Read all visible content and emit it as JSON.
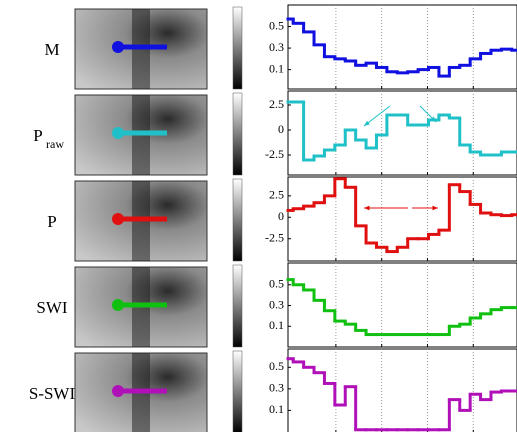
{
  "chart_data": [
    {
      "type": "line",
      "label": "M",
      "color": "#1010e0",
      "x": [
        0,
        1,
        2,
        3,
        4,
        5,
        6,
        7,
        8,
        9,
        10,
        11,
        12,
        13,
        14,
        15,
        16,
        17,
        18,
        19,
        20,
        21,
        22
      ],
      "xlim": [
        0,
        22
      ],
      "xticks": [
        4.6,
        9,
        13.4,
        17.8
      ],
      "values": [
        0.57,
        0.53,
        0.45,
        0.33,
        0.22,
        0.2,
        0.18,
        0.14,
        0.16,
        0.12,
        0.08,
        0.07,
        0.08,
        0.1,
        0.12,
        0.04,
        0.12,
        0.14,
        0.2,
        0.25,
        0.28,
        0.29,
        0.28
      ],
      "ylim": [
        -0.08,
        0.7
      ],
      "yticks": [
        0.1,
        0.3,
        0.5
      ],
      "grid": "x"
    },
    {
      "type": "line",
      "label": "P",
      "label_sub": "raw",
      "color": "#20c0c8",
      "x": [
        0,
        1,
        2,
        3,
        4,
        5,
        6,
        7,
        8,
        9,
        10,
        11,
        12,
        13,
        14,
        15,
        16,
        17,
        18,
        19,
        20,
        21,
        22
      ],
      "xlim": [
        0,
        22
      ],
      "xticks": [
        4.6,
        9,
        13.4,
        17.8
      ],
      "values": [
        2.8,
        2.8,
        -3,
        -2.6,
        -2,
        -1.5,
        0,
        -1,
        -1.8,
        -0.5,
        1.5,
        1.5,
        0.5,
        0.5,
        1,
        1.5,
        1.2,
        -1.5,
        -2.2,
        -2.5,
        -2.5,
        -2.2,
        -2.2
      ],
      "ylim": [
        -4.5,
        3.9
      ],
      "yticks": [
        -2.5,
        0,
        2.5
      ],
      "grid": "x"
    },
    {
      "type": "line",
      "label": "P",
      "color": "#e01010",
      "x": [
        0,
        1,
        2,
        3,
        4,
        5,
        6,
        7,
        8,
        9,
        10,
        11,
        12,
        13,
        14,
        15,
        16,
        17,
        18,
        19,
        20,
        21,
        22
      ],
      "xlim": [
        0,
        22
      ],
      "xticks": [
        4.6,
        9,
        13.4,
        17.8
      ],
      "values": [
        0.8,
        1,
        1.3,
        1.7,
        2.5,
        4.5,
        3.5,
        -1,
        -3,
        -3.5,
        -4,
        -3.5,
        -2.5,
        -2.5,
        -2,
        -1.5,
        3.8,
        3,
        1.5,
        0.5,
        0.3,
        0.2,
        0.3
      ],
      "ylim": [
        -5.1,
        4.7
      ],
      "yticks": [
        -2.5,
        0,
        2.5
      ],
      "grid": "x"
    },
    {
      "type": "line",
      "label": "SWI",
      "color": "#10c010",
      "x": [
        0,
        1,
        2,
        3,
        4,
        5,
        6,
        7,
        8,
        9,
        10,
        11,
        12,
        13,
        14,
        15,
        16,
        17,
        18,
        19,
        20,
        21,
        22
      ],
      "xlim": [
        0,
        22
      ],
      "xticks": [
        4.6,
        9,
        13.4,
        17.8
      ],
      "values": [
        0.55,
        0.5,
        0.45,
        0.35,
        0.25,
        0.15,
        0.12,
        0.06,
        0.02,
        0.02,
        0.02,
        0.02,
        0.02,
        0.02,
        0.02,
        0.02,
        0.1,
        0.12,
        0.18,
        0.22,
        0.26,
        0.28,
        0.28
      ],
      "ylim": [
        -0.1,
        0.71
      ],
      "yticks": [
        0.1,
        0.3,
        0.5
      ],
      "grid": "x"
    },
    {
      "type": "line",
      "label": "S-SWI",
      "color": "#b010b8",
      "x": [
        0,
        1,
        2,
        3,
        4,
        5,
        6,
        7,
        8,
        9,
        10,
        11,
        12,
        13,
        14,
        15,
        16,
        17,
        18,
        19,
        20,
        21,
        22
      ],
      "xlim": [
        0,
        22
      ],
      "xticks": [
        4.6,
        9,
        13.4,
        17.8
      ],
      "values": [
        0.58,
        0.55,
        0.5,
        0.45,
        0.35,
        0.15,
        0.32,
        -0.08,
        -0.08,
        -0.08,
        -0.08,
        -0.08,
        -0.08,
        -0.08,
        -0.08,
        -0.08,
        0.2,
        0.1,
        0.25,
        0.2,
        0.27,
        0.28,
        0.28
      ],
      "ylim": [
        -0.11,
        0.67
      ],
      "yticks": [
        0.1,
        0.3,
        0.5
      ],
      "grid": "x"
    }
  ]
}
